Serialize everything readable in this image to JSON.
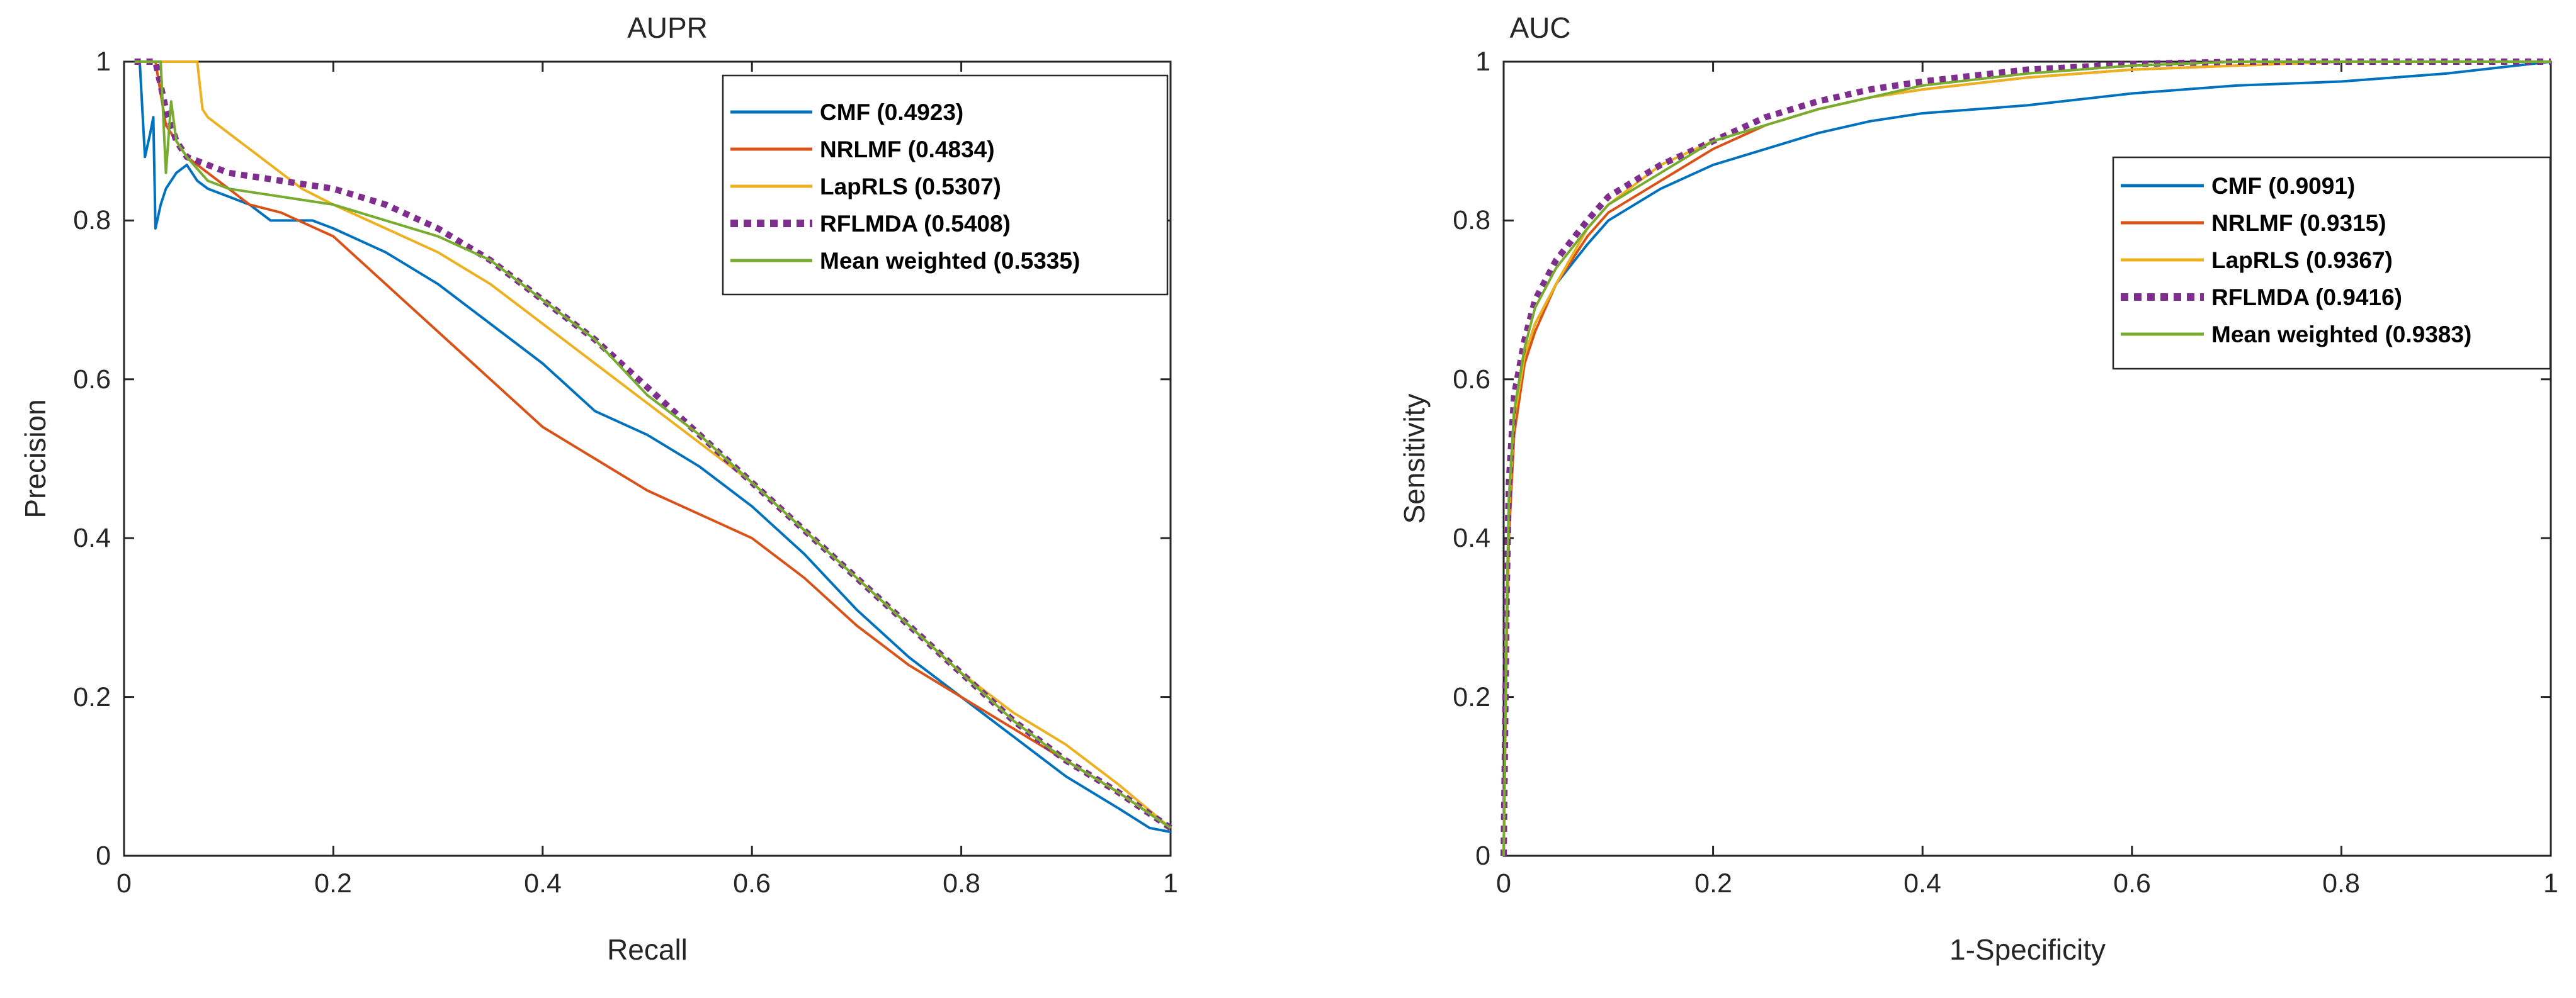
{
  "chart_data": [
    {
      "type": "line",
      "title": "AUPR",
      "xlabel": "Recall",
      "ylabel": "Precision",
      "xlim": [
        0,
        1
      ],
      "ylim": [
        0,
        1
      ],
      "xticks": [
        0,
        0.2,
        0.4,
        0.6,
        0.8,
        1
      ],
      "yticks": [
        0,
        0.2,
        0.4,
        0.6,
        0.8,
        1
      ],
      "xtick_labels": [
        "0",
        "0.2",
        "0.4",
        "0.6",
        "0.8",
        "1"
      ],
      "ytick_labels": [
        "0",
        "0.2",
        "0.4",
        "0.6",
        "0.8",
        "1"
      ],
      "grid": false,
      "legend_position": "top-right",
      "series": [
        {
          "name": "CMF (0.4923)",
          "color": "#0072BD",
          "dashed": false,
          "x": [
            0.01,
            0.015,
            0.02,
            0.025,
            0.028,
            0.03,
            0.035,
            0.04,
            0.05,
            0.06,
            0.07,
            0.08,
            0.1,
            0.12,
            0.14,
            0.16,
            0.18,
            0.2,
            0.25,
            0.3,
            0.35,
            0.4,
            0.45,
            0.5,
            0.55,
            0.6,
            0.65,
            0.7,
            0.75,
            0.8,
            0.85,
            0.9,
            0.95,
            0.98,
            1.0
          ],
          "y": [
            1.0,
            1.0,
            0.88,
            0.91,
            0.93,
            0.79,
            0.82,
            0.84,
            0.86,
            0.87,
            0.85,
            0.84,
            0.83,
            0.82,
            0.8,
            0.8,
            0.8,
            0.79,
            0.76,
            0.72,
            0.67,
            0.62,
            0.56,
            0.53,
            0.49,
            0.44,
            0.38,
            0.31,
            0.25,
            0.2,
            0.15,
            0.1,
            0.06,
            0.035,
            0.03
          ]
        },
        {
          "name": "NRLMF (0.4834)",
          "color": "#D95319",
          "dashed": false,
          "x": [
            0.01,
            0.02,
            0.03,
            0.04,
            0.05,
            0.06,
            0.08,
            0.1,
            0.12,
            0.15,
            0.2,
            0.25,
            0.3,
            0.35,
            0.4,
            0.45,
            0.5,
            0.55,
            0.6,
            0.65,
            0.7,
            0.75,
            0.8,
            0.85,
            0.9,
            0.95,
            1.0
          ],
          "y": [
            1.0,
            1.0,
            1.0,
            0.92,
            0.9,
            0.88,
            0.86,
            0.84,
            0.82,
            0.81,
            0.78,
            0.72,
            0.66,
            0.6,
            0.54,
            0.5,
            0.46,
            0.43,
            0.4,
            0.35,
            0.29,
            0.24,
            0.2,
            0.16,
            0.12,
            0.08,
            0.035
          ]
        },
        {
          "name": "LapRLS (0.5307)",
          "color": "#EDB120",
          "dashed": false,
          "x": [
            0.01,
            0.02,
            0.03,
            0.05,
            0.07,
            0.075,
            0.08,
            0.1,
            0.12,
            0.15,
            0.17,
            0.2,
            0.25,
            0.3,
            0.35,
            0.4,
            0.45,
            0.5,
            0.55,
            0.6,
            0.65,
            0.7,
            0.75,
            0.8,
            0.85,
            0.9,
            0.95,
            1.0
          ],
          "y": [
            1.0,
            1.0,
            1.0,
            1.0,
            1.0,
            0.94,
            0.93,
            0.91,
            0.89,
            0.86,
            0.84,
            0.82,
            0.79,
            0.76,
            0.72,
            0.67,
            0.62,
            0.57,
            0.52,
            0.47,
            0.41,
            0.35,
            0.29,
            0.23,
            0.18,
            0.14,
            0.09,
            0.035
          ]
        },
        {
          "name": "RFLMDA (0.5408)",
          "color": "#7E2F8E",
          "dashed": true,
          "x": [
            0.01,
            0.03,
            0.04,
            0.05,
            0.06,
            0.08,
            0.1,
            0.15,
            0.2,
            0.25,
            0.3,
            0.35,
            0.4,
            0.45,
            0.5,
            0.55,
            0.6,
            0.65,
            0.7,
            0.75,
            0.8,
            0.85,
            0.9,
            0.95,
            1.0
          ],
          "y": [
            1.0,
            1.0,
            0.94,
            0.9,
            0.88,
            0.87,
            0.86,
            0.85,
            0.84,
            0.82,
            0.79,
            0.75,
            0.7,
            0.65,
            0.59,
            0.53,
            0.47,
            0.41,
            0.35,
            0.29,
            0.23,
            0.17,
            0.12,
            0.08,
            0.035
          ]
        },
        {
          "name": "Mean weighted (0.5335)",
          "color": "#77AC30",
          "dashed": false,
          "x": [
            0.01,
            0.035,
            0.04,
            0.045,
            0.05,
            0.06,
            0.08,
            0.1,
            0.15,
            0.2,
            0.25,
            0.3,
            0.35,
            0.4,
            0.45,
            0.5,
            0.55,
            0.6,
            0.65,
            0.7,
            0.75,
            0.8,
            0.85,
            0.9,
            0.95,
            1.0
          ],
          "y": [
            1.0,
            1.0,
            0.86,
            0.95,
            0.9,
            0.88,
            0.85,
            0.84,
            0.83,
            0.82,
            0.8,
            0.78,
            0.75,
            0.7,
            0.65,
            0.58,
            0.53,
            0.47,
            0.41,
            0.35,
            0.29,
            0.23,
            0.17,
            0.12,
            0.08,
            0.035
          ]
        }
      ]
    },
    {
      "type": "line",
      "title": "AUC",
      "xlabel": "1-Specificity",
      "ylabel": "Sensitivity",
      "xlim": [
        0,
        1
      ],
      "ylim": [
        0,
        1
      ],
      "xticks": [
        0,
        0.2,
        0.4,
        0.6,
        0.8,
        1
      ],
      "yticks": [
        0,
        0.2,
        0.4,
        0.6,
        0.8,
        1
      ],
      "xtick_labels": [
        "0",
        "0.2",
        "0.4",
        "0.6",
        "0.8",
        "1"
      ],
      "ytick_labels": [
        "0",
        "0.2",
        "0.4",
        "0.6",
        "0.8",
        "1"
      ],
      "grid": false,
      "legend_position": "right",
      "series": [
        {
          "name": "CMF (0.9091)",
          "color": "#0072BD",
          "dashed": false,
          "x": [
            0,
            0.003,
            0.005,
            0.01,
            0.02,
            0.03,
            0.05,
            0.08,
            0.1,
            0.15,
            0.2,
            0.25,
            0.3,
            0.35,
            0.4,
            0.5,
            0.6,
            0.7,
            0.8,
            0.9,
            1.0
          ],
          "y": [
            0,
            0.3,
            0.44,
            0.56,
            0.63,
            0.67,
            0.72,
            0.77,
            0.8,
            0.84,
            0.87,
            0.89,
            0.91,
            0.925,
            0.935,
            0.945,
            0.96,
            0.97,
            0.975,
            0.985,
            1.0
          ]
        },
        {
          "name": "NRLMF (0.9315)",
          "color": "#D95319",
          "dashed": false,
          "x": [
            0,
            0.003,
            0.005,
            0.01,
            0.02,
            0.03,
            0.05,
            0.08,
            0.1,
            0.15,
            0.2,
            0.25,
            0.3,
            0.35,
            0.4,
            0.5,
            0.6,
            0.7,
            0.8,
            0.9,
            1.0
          ],
          "y": [
            0,
            0.28,
            0.4,
            0.53,
            0.62,
            0.66,
            0.72,
            0.78,
            0.81,
            0.85,
            0.89,
            0.92,
            0.94,
            0.955,
            0.965,
            0.98,
            0.99,
            0.995,
            1.0,
            1.0,
            1.0
          ]
        },
        {
          "name": "LapRLS (0.9367)",
          "color": "#EDB120",
          "dashed": false,
          "x": [
            0,
            0.003,
            0.005,
            0.01,
            0.02,
            0.03,
            0.05,
            0.08,
            0.1,
            0.15,
            0.2,
            0.25,
            0.3,
            0.35,
            0.4,
            0.5,
            0.6,
            0.7,
            0.8,
            0.9,
            1.0
          ],
          "y": [
            0,
            0.3,
            0.43,
            0.55,
            0.63,
            0.67,
            0.72,
            0.79,
            0.82,
            0.87,
            0.9,
            0.92,
            0.94,
            0.955,
            0.965,
            0.98,
            0.99,
            0.995,
            1.0,
            1.0,
            1.0
          ]
        },
        {
          "name": "RFLMDA (0.9416)",
          "color": "#7E2F8E",
          "dashed": true,
          "x": [
            0,
            0.003,
            0.005,
            0.01,
            0.02,
            0.03,
            0.05,
            0.08,
            0.1,
            0.15,
            0.2,
            0.25,
            0.3,
            0.35,
            0.4,
            0.5,
            0.6,
            0.7,
            0.8,
            0.9,
            1.0
          ],
          "y": [
            0,
            0.34,
            0.47,
            0.58,
            0.65,
            0.7,
            0.75,
            0.8,
            0.83,
            0.87,
            0.9,
            0.93,
            0.95,
            0.965,
            0.975,
            0.99,
            0.997,
            1.0,
            1.0,
            1.0,
            1.0
          ]
        },
        {
          "name": "Mean weighted (0.9383)",
          "color": "#77AC30",
          "dashed": false,
          "x": [
            0,
            0.003,
            0.005,
            0.01,
            0.02,
            0.03,
            0.05,
            0.08,
            0.1,
            0.15,
            0.2,
            0.25,
            0.3,
            0.35,
            0.4,
            0.5,
            0.6,
            0.7,
            0.8,
            0.9,
            1.0
          ],
          "y": [
            0,
            0.32,
            0.45,
            0.56,
            0.64,
            0.69,
            0.74,
            0.79,
            0.82,
            0.86,
            0.9,
            0.92,
            0.94,
            0.955,
            0.97,
            0.985,
            0.995,
            1.0,
            1.0,
            1.0,
            1.0
          ]
        }
      ]
    }
  ]
}
